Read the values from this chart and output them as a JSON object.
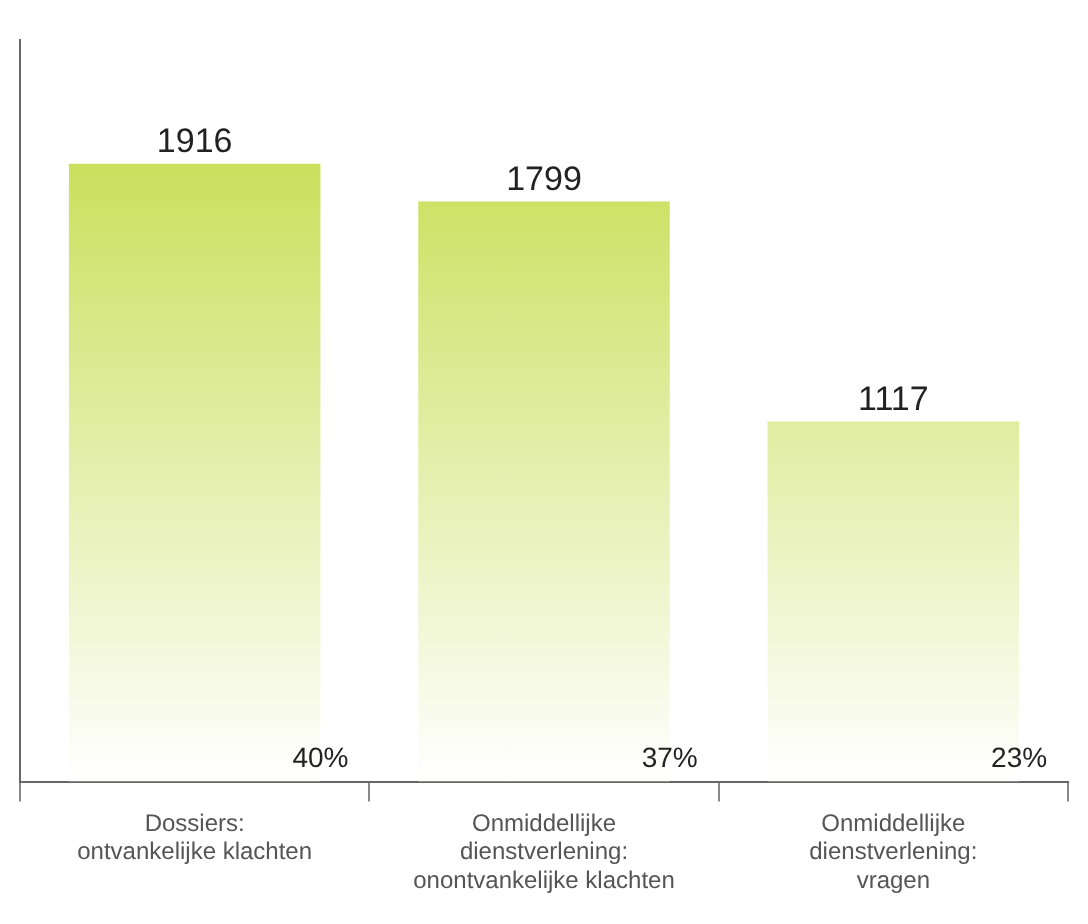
{
  "chart_data": {
    "type": "bar",
    "categories": [
      "Dossiers:\nontvankelijke klachten",
      "Onmiddellijke\ndienstverlening:\nonontvankelijke klachten",
      "Onmiddellijke\ndienstverlening:\nvragen"
    ],
    "values": [
      1916,
      1799,
      1117
    ],
    "color": "#c0d93c",
    "data_labels": true,
    "ylim": [
      0,
      2300
    ],
    "tick_labels": "x",
    "grid": false,
    "legend": false,
    "annotations": [
      "40%",
      "37%",
      "23%"
    ]
  }
}
